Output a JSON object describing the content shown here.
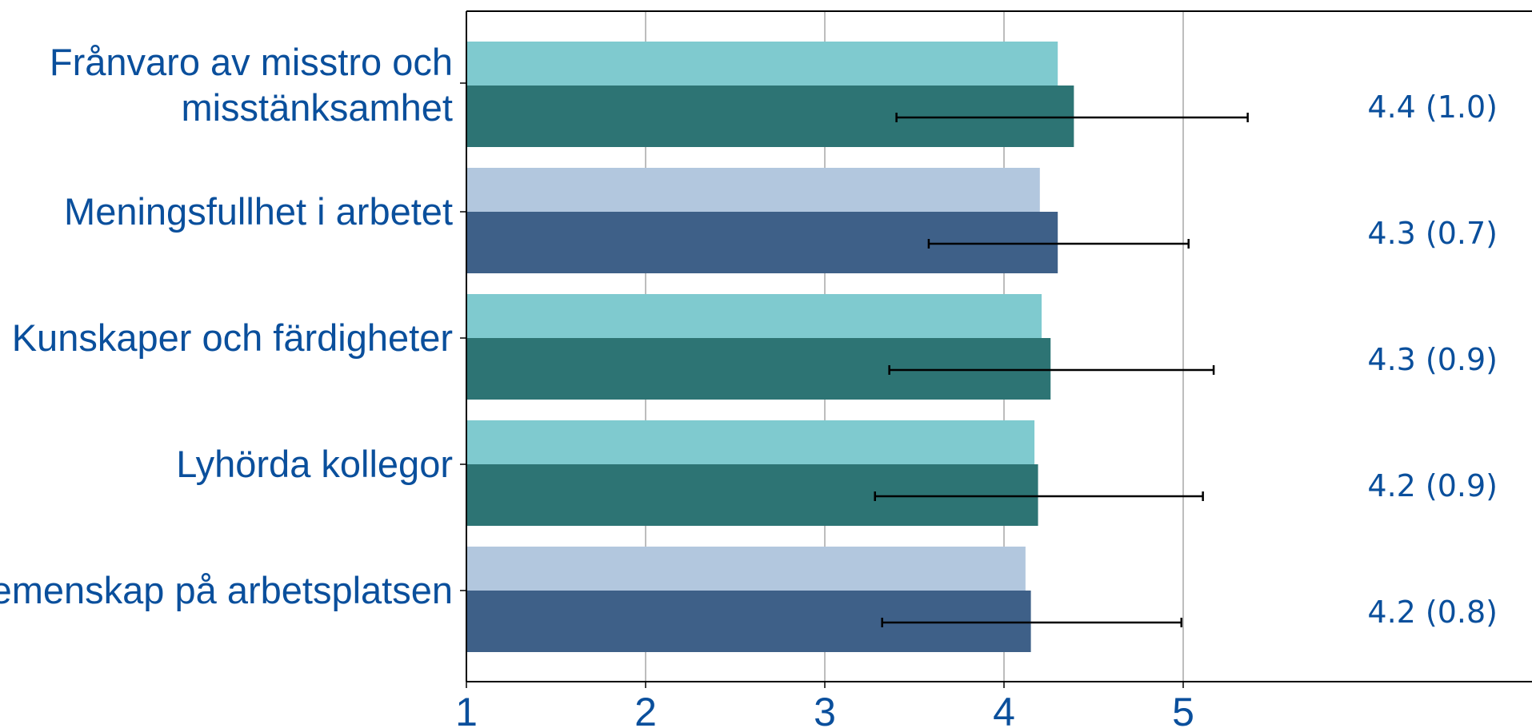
{
  "chart_data": {
    "type": "bar",
    "orientation": "horizontal",
    "categories": [
      [
        "Frånvaro av misstro och",
        "misstänksamhet"
      ],
      [
        "Meningsfullhet i arbetet"
      ],
      [
        "Kunskaper och färdigheter"
      ],
      [
        "Lyhörda kollegor"
      ],
      [
        "Gemenskap på arbetsplatsen"
      ]
    ],
    "series": [
      {
        "values": [
          4.3,
          4.2,
          4.21,
          4.17,
          4.12
        ]
      },
      {
        "values": [
          4.39,
          4.3,
          4.26,
          4.19,
          4.15
        ]
      }
    ],
    "error_bars": [
      [
        3.4,
        5.36
      ],
      [
        3.58,
        5.03
      ],
      [
        3.36,
        5.17
      ],
      [
        3.28,
        5.11
      ],
      [
        3.32,
        4.99
      ]
    ],
    "value_labels": [
      "4.4 (1.0)",
      "4.3 (0.7)",
      "4.3 (0.9)",
      "4.2 (0.9)",
      "4.2 (0.8)"
    ],
    "xlim": [
      1,
      6.1
    ],
    "xticks": [
      "1",
      "2",
      "3",
      "4",
      "5"
    ],
    "grid": "vertical",
    "colors": {
      "teal_light": "#7fcacf",
      "teal_dark": "#2d7474",
      "blue_light": "#b2c7de",
      "blue_dark": "#3e6088",
      "text": "#0a4f9c",
      "grid": "#bdbdbd",
      "axis": "#000000"
    },
    "color_scheme": [
      "teal",
      "blue",
      "teal",
      "teal",
      "blue"
    ]
  }
}
